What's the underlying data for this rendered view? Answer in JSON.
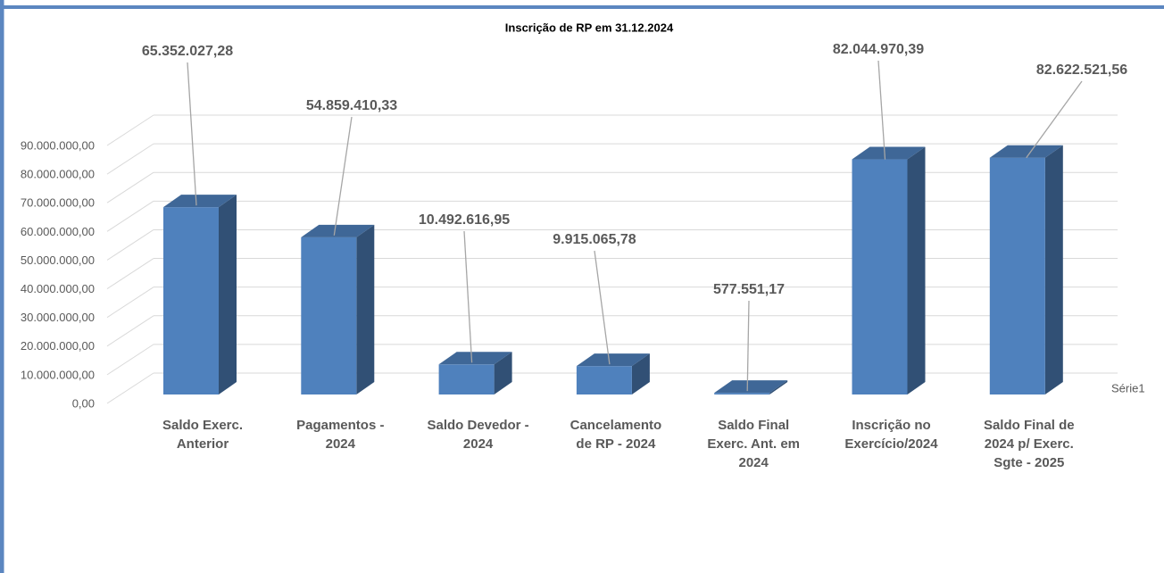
{
  "chart_data": {
    "type": "bar",
    "title": "Inscrição de RP em 31.12.2024",
    "categories": [
      "Saldo Exerc.\nAnterior",
      "Pagamentos -\n2024",
      "Saldo Devedor -\n2024",
      "Cancelamento\nde RP - 2024",
      "Saldo Final\nExerc. Ant. em\n2024",
      "Inscrição no\nExercício/2024",
      "Saldo Final de\n2024 p/ Exerc.\nSgte  - 2025"
    ],
    "series": [
      {
        "name": "Série1",
        "color": "#4f81bd",
        "values": [
          65352027.28,
          54859410.33,
          10492616.95,
          9915065.78,
          577551.17,
          82044970.39,
          82622521.56
        ],
        "value_labels": [
          "65.352.027,28",
          "54.859.410,33",
          "10.492.616,95",
          "9.915.065,78",
          "577.551,17",
          "82.044.970,39",
          "82.622.521,56"
        ]
      }
    ],
    "ylim": [
      0,
      90000000
    ],
    "yticks": [
      {
        "value": 0,
        "label": "0,00"
      },
      {
        "value": 10000000,
        "label": "10.000.000,00"
      },
      {
        "value": 20000000,
        "label": "20.000.000,00"
      },
      {
        "value": 30000000,
        "label": "30.000.000,00"
      },
      {
        "value": 40000000,
        "label": "40.000.000,00"
      },
      {
        "value": 50000000,
        "label": "50.000.000,00"
      },
      {
        "value": 60000000,
        "label": "60.000.000,00"
      },
      {
        "value": 70000000,
        "label": "70.000.000,00"
      },
      {
        "value": 80000000,
        "label": "80.000.000,00"
      },
      {
        "value": 90000000,
        "label": "90.000.000,00"
      }
    ],
    "grid": true
  }
}
